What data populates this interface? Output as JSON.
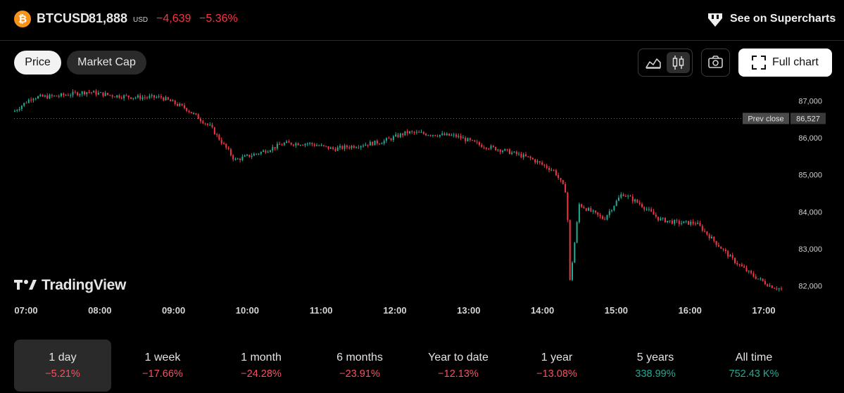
{
  "header": {
    "logo_glyph": "₿",
    "symbol": "BTCUSD",
    "price": "81,888",
    "currency": "USD",
    "change_abs": "−4,639",
    "change_pct": "−5.36%",
    "supercharts_link": "See on Supercharts"
  },
  "toolbar": {
    "tabs": [
      {
        "label": "Price",
        "active": true
      },
      {
        "label": "Market Cap",
        "active": false
      }
    ],
    "chart_style_buttons": [
      "area-chart-icon",
      "candles-icon"
    ],
    "active_style": "candles",
    "snapshot_icon": "camera-icon",
    "full_chart_label": "Full chart"
  },
  "watermark": "TradingView",
  "colors": {
    "up": "#22ab94",
    "down": "#f23645",
    "bitcoin": "#f7931a",
    "background": "#000000"
  },
  "chart_data": {
    "type": "line",
    "style": "candles",
    "x": [
      "06:55",
      "07:15",
      "07:35",
      "08:00",
      "08:20",
      "08:40",
      "09:00",
      "09:20",
      "09:40",
      "10:00",
      "10:20",
      "10:40",
      "11:00",
      "11:20",
      "11:40",
      "12:00",
      "12:20",
      "12:40",
      "13:00",
      "13:20",
      "13:40",
      "14:00",
      "14:20",
      "14:30",
      "14:32",
      "14:40",
      "15:00",
      "15:15",
      "15:30",
      "15:45",
      "16:00",
      "16:15",
      "16:30",
      "16:45",
      "17:00",
      "17:15",
      "17:25"
    ],
    "y": [
      86580,
      87100,
      87130,
      87250,
      87150,
      87100,
      87100,
      86800,
      86300,
      85400,
      85600,
      85850,
      85850,
      85700,
      85800,
      85900,
      86150,
      86100,
      86050,
      85800,
      85650,
      85450,
      85100,
      84500,
      82000,
      84200,
      83800,
      84500,
      84200,
      83800,
      83700,
      83700,
      83200,
      82700,
      82300,
      82000,
      81900
    ],
    "xlabel": "",
    "ylabel": "",
    "x_ticks": [
      "07:00",
      "08:00",
      "09:00",
      "10:00",
      "11:00",
      "12:00",
      "13:00",
      "14:00",
      "15:00",
      "16:00",
      "17:00"
    ],
    "y_ticks": [
      "82,000",
      "83,000",
      "84,000",
      "85,000",
      "86,000",
      "87,000"
    ],
    "ylim": [
      81550,
      87450
    ],
    "prev_close": {
      "label": "Prev close",
      "value": 86527,
      "value_text": "86,527"
    },
    "grid": false,
    "legend": "none"
  },
  "ranges": [
    {
      "label": "1 day",
      "value": "−5.21%",
      "sign": "neg",
      "active": true
    },
    {
      "label": "1 week",
      "value": "−17.66%",
      "sign": "neg",
      "active": false
    },
    {
      "label": "1 month",
      "value": "−24.28%",
      "sign": "neg",
      "active": false
    },
    {
      "label": "6 months",
      "value": "−23.91%",
      "sign": "neg",
      "active": false
    },
    {
      "label": "Year to date",
      "value": "−12.13%",
      "sign": "neg",
      "active": false
    },
    {
      "label": "1 year",
      "value": "−13.08%",
      "sign": "neg",
      "active": false
    },
    {
      "label": "5 years",
      "value": "338.99%",
      "sign": "pos",
      "active": false
    },
    {
      "label": "All time",
      "value": "752.43 K%",
      "sign": "pos",
      "active": false
    }
  ]
}
